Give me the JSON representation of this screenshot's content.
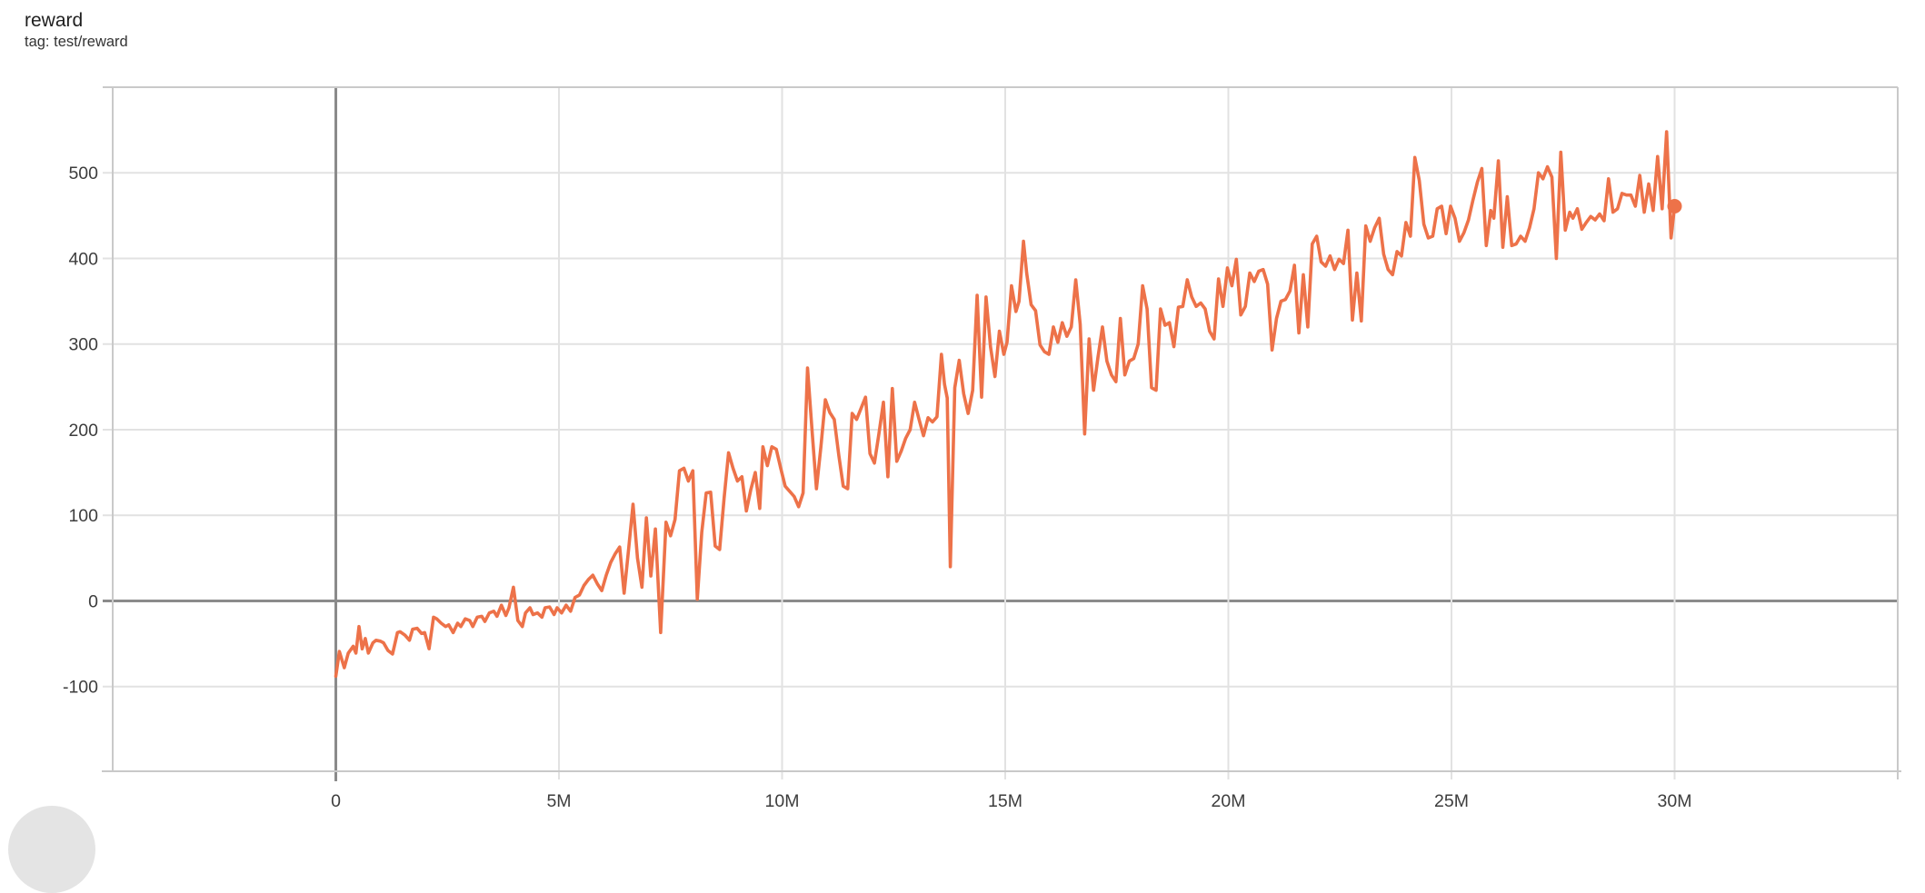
{
  "card": {
    "title": "reward",
    "subtitle": "tag: test/reward"
  },
  "chart_data": {
    "type": "line",
    "title": "reward",
    "tag": "test/reward",
    "legend_position": "none",
    "grid": true,
    "x_unit": "steps (millions)",
    "x_range_M": [
      -5,
      35
    ],
    "y_range": [
      -199,
      600
    ],
    "x_ticks": [
      {
        "value": 0,
        "label": "0"
      },
      {
        "value": 5,
        "label": "5M"
      },
      {
        "value": 10,
        "label": "10M"
      },
      {
        "value": 15,
        "label": "15M"
      },
      {
        "value": 20,
        "label": "20M"
      },
      {
        "value": 25,
        "label": "25M"
      },
      {
        "value": 30,
        "label": "30M"
      }
    ],
    "y_ticks": [
      {
        "value": -100,
        "label": "-100"
      },
      {
        "value": 0,
        "label": "0"
      },
      {
        "value": 100,
        "label": "100"
      },
      {
        "value": 200,
        "label": "200"
      },
      {
        "value": 300,
        "label": "300"
      },
      {
        "value": 400,
        "label": "400"
      },
      {
        "value": 500,
        "label": "500"
      }
    ],
    "colors": {
      "line": "#ed7249",
      "grid": "#e2e2e2",
      "border": "#c9c9c9",
      "zero_line": "#8b8b8b",
      "label": "#3d3d3d"
    },
    "final_point": [
      30.0,
      461
    ],
    "points": [
      [
        0.0,
        -88
      ],
      [
        0.08,
        -59
      ],
      [
        0.19,
        -78
      ],
      [
        0.28,
        -61
      ],
      [
        0.39,
        -53
      ],
      [
        0.45,
        -61
      ],
      [
        0.52,
        -30
      ],
      [
        0.59,
        -56
      ],
      [
        0.66,
        -44
      ],
      [
        0.73,
        -61
      ],
      [
        0.83,
        -49
      ],
      [
        0.9,
        -46
      ],
      [
        1.0,
        -47
      ],
      [
        1.07,
        -49
      ],
      [
        1.17,
        -58
      ],
      [
        1.27,
        -62
      ],
      [
        1.38,
        -37
      ],
      [
        1.44,
        -36
      ],
      [
        1.55,
        -40
      ],
      [
        1.65,
        -46
      ],
      [
        1.72,
        -33
      ],
      [
        1.82,
        -32
      ],
      [
        1.92,
        -38
      ],
      [
        1.99,
        -37
      ],
      [
        2.09,
        -56
      ],
      [
        2.19,
        -19
      ],
      [
        2.26,
        -21
      ],
      [
        2.36,
        -26
      ],
      [
        2.46,
        -30
      ],
      [
        2.53,
        -28
      ],
      [
        2.63,
        -37
      ],
      [
        2.73,
        -26
      ],
      [
        2.8,
        -30
      ],
      [
        2.9,
        -21
      ],
      [
        3.0,
        -23
      ],
      [
        3.07,
        -30
      ],
      [
        3.17,
        -19
      ],
      [
        3.27,
        -18
      ],
      [
        3.34,
        -24
      ],
      [
        3.44,
        -14
      ],
      [
        3.54,
        -12
      ],
      [
        3.61,
        -18
      ],
      [
        3.71,
        -5
      ],
      [
        3.81,
        -17
      ],
      [
        3.88,
        -8
      ],
      [
        3.98,
        16
      ],
      [
        4.08,
        -23
      ],
      [
        4.18,
        -30
      ],
      [
        4.25,
        -14
      ],
      [
        4.35,
        -8
      ],
      [
        4.42,
        -16
      ],
      [
        4.52,
        -14
      ],
      [
        4.62,
        -19
      ],
      [
        4.69,
        -8
      ],
      [
        4.79,
        -7
      ],
      [
        4.89,
        -16
      ],
      [
        4.96,
        -8
      ],
      [
        5.06,
        -14
      ],
      [
        5.16,
        -5
      ],
      [
        5.26,
        -12
      ],
      [
        5.36,
        4
      ],
      [
        5.46,
        7
      ],
      [
        5.56,
        18
      ],
      [
        5.66,
        25
      ],
      [
        5.76,
        30
      ],
      [
        5.86,
        20
      ],
      [
        5.96,
        12
      ],
      [
        6.06,
        30
      ],
      [
        6.16,
        45
      ],
      [
        6.26,
        55
      ],
      [
        6.36,
        63
      ],
      [
        6.46,
        9
      ],
      [
        6.56,
        60
      ],
      [
        6.66,
        113
      ],
      [
        6.76,
        50
      ],
      [
        6.86,
        16
      ],
      [
        6.96,
        97
      ],
      [
        7.06,
        29
      ],
      [
        7.16,
        84
      ],
      [
        7.28,
        -37
      ],
      [
        7.4,
        92
      ],
      [
        7.5,
        76
      ],
      [
        7.6,
        95
      ],
      [
        7.7,
        152
      ],
      [
        7.8,
        155
      ],
      [
        7.9,
        140
      ],
      [
        8.0,
        152
      ],
      [
        8.1,
        2
      ],
      [
        8.2,
        80
      ],
      [
        8.3,
        126
      ],
      [
        8.4,
        127
      ],
      [
        8.5,
        64
      ],
      [
        8.6,
        60
      ],
      [
        8.7,
        120
      ],
      [
        8.8,
        173
      ],
      [
        8.9,
        155
      ],
      [
        9.0,
        140
      ],
      [
        9.1,
        145
      ],
      [
        9.2,
        105
      ],
      [
        9.3,
        130
      ],
      [
        9.4,
        150
      ],
      [
        9.5,
        108
      ],
      [
        9.57,
        180
      ],
      [
        9.67,
        158
      ],
      [
        9.77,
        180
      ],
      [
        9.87,
        177
      ],
      [
        9.97,
        155
      ],
      [
        10.07,
        134
      ],
      [
        10.17,
        128
      ],
      [
        10.27,
        122
      ],
      [
        10.37,
        110
      ],
      [
        10.47,
        126
      ],
      [
        10.57,
        272
      ],
      [
        10.67,
        200
      ],
      [
        10.77,
        131
      ],
      [
        10.87,
        180
      ],
      [
        10.97,
        235
      ],
      [
        11.07,
        220
      ],
      [
        11.17,
        212
      ],
      [
        11.27,
        170
      ],
      [
        11.37,
        134
      ],
      [
        11.47,
        131
      ],
      [
        11.57,
        219
      ],
      [
        11.67,
        212
      ],
      [
        11.77,
        225
      ],
      [
        11.87,
        238
      ],
      [
        11.97,
        172
      ],
      [
        12.07,
        161
      ],
      [
        12.17,
        195
      ],
      [
        12.27,
        232
      ],
      [
        12.37,
        145
      ],
      [
        12.47,
        248
      ],
      [
        12.57,
        163
      ],
      [
        12.67,
        175
      ],
      [
        12.77,
        190
      ],
      [
        12.87,
        200
      ],
      [
        12.97,
        232
      ],
      [
        13.07,
        212
      ],
      [
        13.17,
        193
      ],
      [
        13.27,
        214
      ],
      [
        13.37,
        209
      ],
      [
        13.47,
        215
      ],
      [
        13.57,
        288
      ],
      [
        13.64,
        253
      ],
      [
        13.7,
        237
      ],
      [
        13.77,
        40
      ],
      [
        13.87,
        249
      ],
      [
        13.97,
        281
      ],
      [
        14.07,
        242
      ],
      [
        14.17,
        219
      ],
      [
        14.27,
        246
      ],
      [
        14.37,
        357
      ],
      [
        14.47,
        238
      ],
      [
        14.57,
        355
      ],
      [
        14.67,
        297
      ],
      [
        14.77,
        262
      ],
      [
        14.87,
        315
      ],
      [
        14.97,
        288
      ],
      [
        15.04,
        302
      ],
      [
        15.14,
        368
      ],
      [
        15.24,
        338
      ],
      [
        15.31,
        350
      ],
      [
        15.41,
        420
      ],
      [
        15.48,
        383
      ],
      [
        15.58,
        346
      ],
      [
        15.68,
        339
      ],
      [
        15.78,
        299
      ],
      [
        15.88,
        291
      ],
      [
        15.98,
        288
      ],
      [
        16.08,
        320
      ],
      [
        16.18,
        302
      ],
      [
        16.28,
        325
      ],
      [
        16.38,
        309
      ],
      [
        16.48,
        320
      ],
      [
        16.58,
        375
      ],
      [
        16.68,
        323
      ],
      [
        16.78,
        195
      ],
      [
        16.88,
        306
      ],
      [
        16.98,
        246
      ],
      [
        17.08,
        285
      ],
      [
        17.18,
        320
      ],
      [
        17.28,
        280
      ],
      [
        17.38,
        264
      ],
      [
        17.48,
        256
      ],
      [
        17.58,
        330
      ],
      [
        17.68,
        264
      ],
      [
        17.78,
        280
      ],
      [
        17.88,
        283
      ],
      [
        17.98,
        300
      ],
      [
        18.08,
        368
      ],
      [
        18.18,
        341
      ],
      [
        18.28,
        249
      ],
      [
        18.38,
        246
      ],
      [
        18.48,
        341
      ],
      [
        18.58,
        322
      ],
      [
        18.68,
        325
      ],
      [
        18.78,
        297
      ],
      [
        18.88,
        343
      ],
      [
        18.98,
        344
      ],
      [
        19.08,
        375
      ],
      [
        19.18,
        355
      ],
      [
        19.28,
        344
      ],
      [
        19.38,
        348
      ],
      [
        19.48,
        341
      ],
      [
        19.58,
        315
      ],
      [
        19.68,
        306
      ],
      [
        19.78,
        376
      ],
      [
        19.88,
        344
      ],
      [
        19.98,
        389
      ],
      [
        20.08,
        368
      ],
      [
        20.18,
        399
      ],
      [
        20.28,
        334
      ],
      [
        20.38,
        344
      ],
      [
        20.48,
        383
      ],
      [
        20.58,
        373
      ],
      [
        20.68,
        385
      ],
      [
        20.78,
        387
      ],
      [
        20.88,
        370
      ],
      [
        20.98,
        293
      ],
      [
        21.08,
        330
      ],
      [
        21.18,
        350
      ],
      [
        21.28,
        352
      ],
      [
        21.38,
        362
      ],
      [
        21.48,
        392
      ],
      [
        21.58,
        313
      ],
      [
        21.68,
        381
      ],
      [
        21.78,
        320
      ],
      [
        21.88,
        417
      ],
      [
        21.98,
        426
      ],
      [
        22.08,
        396
      ],
      [
        22.18,
        391
      ],
      [
        22.28,
        403
      ],
      [
        22.38,
        387
      ],
      [
        22.48,
        399
      ],
      [
        22.58,
        394
      ],
      [
        22.68,
        433
      ],
      [
        22.78,
        328
      ],
      [
        22.88,
        383
      ],
      [
        22.98,
        327
      ],
      [
        23.08,
        438
      ],
      [
        23.18,
        420
      ],
      [
        23.28,
        436
      ],
      [
        23.38,
        447
      ],
      [
        23.48,
        405
      ],
      [
        23.58,
        387
      ],
      [
        23.68,
        381
      ],
      [
        23.78,
        408
      ],
      [
        23.88,
        403
      ],
      [
        23.98,
        442
      ],
      [
        24.08,
        426
      ],
      [
        24.18,
        518
      ],
      [
        24.28,
        491
      ],
      [
        24.38,
        440
      ],
      [
        24.48,
        424
      ],
      [
        24.58,
        426
      ],
      [
        24.68,
        458
      ],
      [
        24.78,
        461
      ],
      [
        24.88,
        429
      ],
      [
        24.98,
        461
      ],
      [
        25.08,
        447
      ],
      [
        25.18,
        420
      ],
      [
        25.28,
        430
      ],
      [
        25.38,
        445
      ],
      [
        25.48,
        468
      ],
      [
        25.58,
        489
      ],
      [
        25.68,
        505
      ],
      [
        25.78,
        415
      ],
      [
        25.88,
        456
      ],
      [
        25.95,
        447
      ],
      [
        26.05,
        514
      ],
      [
        26.15,
        413
      ],
      [
        26.25,
        472
      ],
      [
        26.35,
        415
      ],
      [
        26.45,
        417
      ],
      [
        26.55,
        426
      ],
      [
        26.65,
        420
      ],
      [
        26.75,
        436
      ],
      [
        26.85,
        458
      ],
      [
        26.95,
        500
      ],
      [
        27.05,
        493
      ],
      [
        27.15,
        507
      ],
      [
        27.25,
        495
      ],
      [
        27.35,
        400
      ],
      [
        27.45,
        524
      ],
      [
        27.55,
        433
      ],
      [
        27.65,
        454
      ],
      [
        27.72,
        447
      ],
      [
        27.82,
        458
      ],
      [
        27.92,
        434
      ],
      [
        28.02,
        442
      ],
      [
        28.12,
        449
      ],
      [
        28.22,
        445
      ],
      [
        28.32,
        452
      ],
      [
        28.42,
        444
      ],
      [
        28.52,
        493
      ],
      [
        28.62,
        454
      ],
      [
        28.72,
        458
      ],
      [
        28.82,
        476
      ],
      [
        28.92,
        474
      ],
      [
        29.02,
        474
      ],
      [
        29.12,
        461
      ],
      [
        29.22,
        497
      ],
      [
        29.32,
        454
      ],
      [
        29.42,
        487
      ],
      [
        29.52,
        456
      ],
      [
        29.62,
        519
      ],
      [
        29.72,
        458
      ],
      [
        29.82,
        548
      ],
      [
        29.92,
        424
      ],
      [
        30.0,
        461
      ]
    ]
  }
}
